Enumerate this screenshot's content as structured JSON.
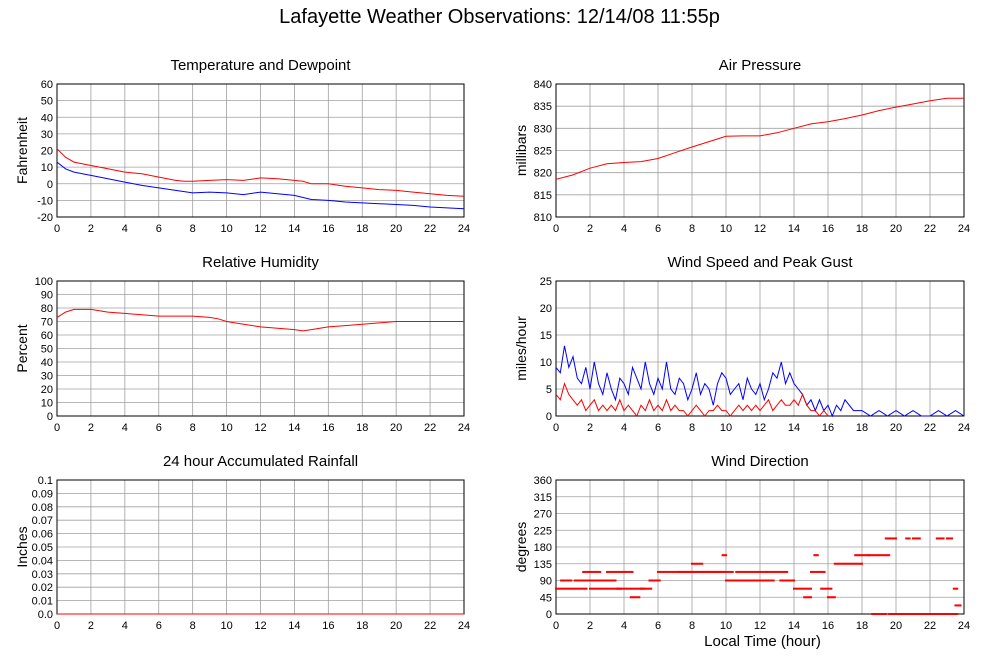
{
  "title": "Lafayette Weather Observations: 12/14/08 11:55p",
  "global_xlabel": "Local Time (hour)",
  "colors": {
    "red": "#ff0000",
    "blue": "#0000ff",
    "grid": "#a0a0a0"
  },
  "chart_data": [
    {
      "id": "temp",
      "type": "line",
      "title": "Temperature and Dewpoint",
      "ylabel": "Fahrenheit",
      "xlim": [
        0,
        24
      ],
      "ylim": [
        -20,
        60
      ],
      "xticks": [
        0,
        2,
        4,
        6,
        8,
        10,
        12,
        14,
        16,
        18,
        20,
        22,
        24
      ],
      "yticks": [
        -20,
        -10,
        0,
        10,
        20,
        30,
        40,
        50,
        60
      ],
      "grid": true,
      "series": [
        {
          "color": "red",
          "x": [
            0,
            0.5,
            1,
            2,
            3,
            4,
            5,
            6,
            7,
            7.5,
            8,
            9,
            10,
            11,
            12,
            13,
            14,
            14.5,
            15,
            16,
            17,
            18,
            19,
            20,
            21,
            22,
            23,
            24
          ],
          "y": [
            21,
            16,
            13,
            11,
            9,
            7,
            6,
            4,
            2,
            1.5,
            1.5,
            2,
            2.5,
            2,
            3.5,
            3,
            2,
            1.5,
            0,
            0,
            -1.5,
            -2.5,
            -3.5,
            -4,
            -5,
            -6,
            -7,
            -7.5
          ]
        },
        {
          "color": "blue",
          "x": [
            0,
            0.5,
            1,
            2,
            3,
            4,
            5,
            6,
            7,
            8,
            9,
            10,
            11,
            12,
            13,
            14,
            15,
            16,
            17,
            18,
            19,
            20,
            21,
            22,
            23,
            24
          ],
          "y": [
            13,
            9,
            7,
            5,
            3,
            1,
            -1,
            -2.5,
            -4,
            -5.5,
            -5,
            -5.5,
            -6.5,
            -5,
            -6,
            -7,
            -9.5,
            -10,
            -11,
            -11.5,
            -12,
            -12.5,
            -13,
            -14,
            -14.5,
            -15
          ]
        }
      ]
    },
    {
      "id": "pressure",
      "type": "line",
      "title": "Air Pressure",
      "ylabel": "millibars",
      "xlim": [
        0,
        24
      ],
      "ylim": [
        810,
        840
      ],
      "xticks": [
        0,
        2,
        4,
        6,
        8,
        10,
        12,
        14,
        16,
        18,
        20,
        22,
        24
      ],
      "yticks": [
        810,
        815,
        820,
        825,
        830,
        835,
        840
      ],
      "grid": true,
      "series": [
        {
          "color": "red",
          "x": [
            0,
            0.5,
            1,
            2,
            3,
            4,
            5,
            6,
            7,
            8,
            9,
            10,
            11,
            12,
            13,
            14,
            15,
            16,
            17,
            18,
            19,
            20,
            21,
            22,
            23,
            24
          ],
          "y": [
            818.5,
            819,
            819.5,
            821,
            822,
            822.3,
            822.5,
            823.2,
            824.5,
            825.8,
            827,
            828.2,
            828.3,
            828.3,
            829,
            830,
            831,
            831.5,
            832.2,
            833,
            834,
            834.8,
            835.5,
            836.2,
            836.8,
            836.8
          ]
        }
      ]
    },
    {
      "id": "humidity",
      "type": "line",
      "title": "Relative Humidity",
      "ylabel": "Percent",
      "xlim": [
        0,
        24
      ],
      "ylim": [
        0,
        100
      ],
      "xticks": [
        0,
        2,
        4,
        6,
        8,
        10,
        12,
        14,
        16,
        18,
        20,
        22,
        24
      ],
      "yticks": [
        0,
        10,
        20,
        30,
        40,
        50,
        60,
        70,
        80,
        90,
        100
      ],
      "grid": true,
      "series": [
        {
          "color": "red",
          "x": [
            0,
            0.5,
            1,
            2,
            2.5,
            3,
            4,
            5,
            6,
            7,
            8,
            9,
            9.5,
            10,
            11,
            12,
            13,
            14,
            14.5,
            15,
            16,
            17,
            18,
            19,
            20,
            21,
            22,
            23,
            24
          ],
          "y": [
            73,
            77,
            79,
            79,
            78,
            77,
            76,
            75,
            74,
            74,
            74,
            73,
            72,
            70,
            68,
            66,
            65,
            64,
            63,
            64,
            66,
            67,
            68,
            69,
            70,
            70,
            70,
            70,
            70
          ]
        }
      ]
    },
    {
      "id": "wind",
      "type": "line",
      "title": "Wind Speed and Peak Gust",
      "ylabel": "miles/hour",
      "xlim": [
        0,
        24
      ],
      "ylim": [
        0,
        25
      ],
      "xticks": [
        0,
        2,
        4,
        6,
        8,
        10,
        12,
        14,
        16,
        18,
        20,
        22,
        24
      ],
      "yticks": [
        0,
        5,
        10,
        15,
        20,
        25
      ],
      "grid": true,
      "series": [
        {
          "color": "blue",
          "x": [
            0,
            0.25,
            0.5,
            0.75,
            1,
            1.25,
            1.5,
            1.75,
            2,
            2.25,
            2.5,
            2.75,
            3,
            3.25,
            3.5,
            3.75,
            4,
            4.25,
            4.5,
            4.75,
            5,
            5.25,
            5.5,
            5.75,
            6,
            6.25,
            6.5,
            6.75,
            7,
            7.25,
            7.5,
            7.75,
            8,
            8.25,
            8.5,
            8.75,
            9,
            9.25,
            9.5,
            9.75,
            10,
            10.25,
            10.5,
            10.75,
            11,
            11.25,
            11.5,
            11.75,
            12,
            12.25,
            12.5,
            12.75,
            13,
            13.25,
            13.5,
            13.75,
            14,
            14.25,
            14.5,
            14.75,
            15,
            15.25,
            15.5,
            15.75,
            16,
            16.25,
            16.5,
            16.75,
            17,
            17.5,
            18,
            18.5,
            19,
            19.5,
            20,
            20.5,
            21,
            21.5,
            22,
            22.5,
            23,
            23.5,
            24
          ],
          "y": [
            9,
            8,
            13,
            9,
            11,
            7,
            6,
            9,
            5,
            10,
            6,
            4,
            8,
            5,
            3,
            7,
            6,
            4,
            9,
            7,
            5,
            10,
            6,
            4,
            7,
            5,
            10,
            5,
            4,
            7,
            6,
            3,
            5,
            8,
            4,
            6,
            5,
            2,
            6,
            8,
            7,
            4,
            5,
            6,
            3,
            7,
            5,
            4,
            6,
            3,
            5,
            8,
            7,
            10,
            6,
            8,
            6,
            5,
            4,
            2,
            3,
            1,
            3,
            1,
            2,
            0,
            2,
            1,
            3,
            1,
            1,
            0,
            1,
            0,
            1,
            0,
            1,
            0,
            0,
            1,
            0,
            1,
            0
          ]
        },
        {
          "color": "red",
          "x": [
            0,
            0.25,
            0.5,
            0.75,
            1,
            1.25,
            1.5,
            1.75,
            2,
            2.25,
            2.5,
            2.75,
            3,
            3.25,
            3.5,
            3.75,
            4,
            4.25,
            4.5,
            4.75,
            5,
            5.25,
            5.5,
            5.75,
            6,
            6.25,
            6.5,
            6.75,
            7,
            7.25,
            7.5,
            7.75,
            8,
            8.25,
            8.5,
            8.75,
            9,
            9.25,
            9.5,
            9.75,
            10,
            10.25,
            10.5,
            10.75,
            11,
            11.25,
            11.5,
            11.75,
            12,
            12.25,
            12.5,
            12.75,
            13,
            13.25,
            13.5,
            13.75,
            14,
            14.25,
            14.5,
            14.75,
            15,
            15.25,
            15.5,
            15.75,
            16
          ],
          "y": [
            4,
            3,
            6,
            4,
            3,
            2,
            3,
            1,
            2,
            3,
            1,
            2,
            1,
            2,
            1,
            3,
            1,
            2,
            1,
            0,
            2,
            1,
            3,
            1,
            2,
            1,
            3,
            1,
            2,
            1,
            1,
            0,
            1,
            2,
            1,
            0,
            1,
            1,
            2,
            1,
            1,
            0,
            1,
            2,
            1,
            2,
            1,
            2,
            1,
            2,
            3,
            1,
            2,
            3,
            2,
            2,
            3,
            2,
            4,
            2,
            1,
            1,
            0,
            1,
            0
          ]
        }
      ]
    },
    {
      "id": "rain",
      "type": "line",
      "title": "24 hour Accumulated Rainfall",
      "ylabel": "Inches",
      "xlim": [
        0,
        24
      ],
      "ylim": [
        0,
        0.1
      ],
      "xticks": [
        0,
        2,
        4,
        6,
        8,
        10,
        12,
        14,
        16,
        18,
        20,
        22,
        24
      ],
      "yticks": [
        0,
        0.01,
        0.02,
        0.03,
        0.04,
        0.05,
        0.06,
        0.07,
        0.08,
        0.09,
        0.1
      ],
      "ytick_labels": [
        "0.0",
        "0.01",
        "0.02",
        "0.03",
        "0.04",
        "0.05",
        "0.06",
        "0.07",
        "0.08",
        "0.09",
        "0.1"
      ],
      "grid": true,
      "series": [
        {
          "color": "red",
          "x": [
            0,
            24
          ],
          "y": [
            0,
            0
          ]
        }
      ]
    },
    {
      "id": "direction",
      "type": "scatter",
      "title": "Wind Direction",
      "ylabel": "degrees",
      "xlim": [
        0,
        24
      ],
      "ylim": [
        0,
        360
      ],
      "xticks": [
        0,
        2,
        4,
        6,
        8,
        10,
        12,
        14,
        16,
        18,
        20,
        22,
        24
      ],
      "yticks": [
        0,
        45,
        90,
        135,
        180,
        225,
        270,
        315,
        360
      ],
      "grid": true,
      "series": [
        {
          "color": "red",
          "segments": [
            [
              0,
              1.8,
              68
            ],
            [
              0.3,
              0.9,
              90
            ],
            [
              1.1,
              3.5,
              90
            ],
            [
              1.6,
              2.6,
              113
            ],
            [
              2.0,
              3.8,
              68
            ],
            [
              3.0,
              4.5,
              113
            ],
            [
              3.6,
              5.2,
              68
            ],
            [
              4.4,
              4.9,
              45
            ],
            [
              5.0,
              5.6,
              68
            ],
            [
              5.5,
              6.1,
              90
            ],
            [
              6.0,
              9.8,
              113
            ],
            [
              7.2,
              9.0,
              113
            ],
            [
              8.0,
              8.6,
              135
            ],
            [
              9.0,
              10.4,
              113
            ],
            [
              9.8,
              10.0,
              158
            ],
            [
              10.0,
              11.2,
              90
            ],
            [
              10.6,
              12.4,
              113
            ],
            [
              11.0,
              12.8,
              90
            ],
            [
              12.4,
              13.6,
              113
            ],
            [
              13.2,
              14.0,
              90
            ],
            [
              14.0,
              15.0,
              68
            ],
            [
              14.6,
              15.0,
              45
            ],
            [
              15.0,
              15.8,
              113
            ],
            [
              15.2,
              15.4,
              158
            ],
            [
              15.6,
              16.2,
              68
            ],
            [
              16.0,
              16.4,
              45
            ],
            [
              16.4,
              18.0,
              135
            ],
            [
              17.6,
              18.4,
              158
            ],
            [
              18.4,
              19.6,
              158
            ],
            [
              18.6,
              19.4,
              0
            ],
            [
              19.4,
              20.0,
              203
            ],
            [
              19.6,
              23.6,
              0
            ],
            [
              20.6,
              20.8,
              203
            ],
            [
              21.0,
              21.4,
              203
            ],
            [
              22.4,
              22.8,
              203
            ],
            [
              23.0,
              23.3,
              203
            ],
            [
              23.4,
              23.6,
              68
            ],
            [
              23.5,
              23.8,
              23
            ]
          ]
        }
      ]
    }
  ]
}
